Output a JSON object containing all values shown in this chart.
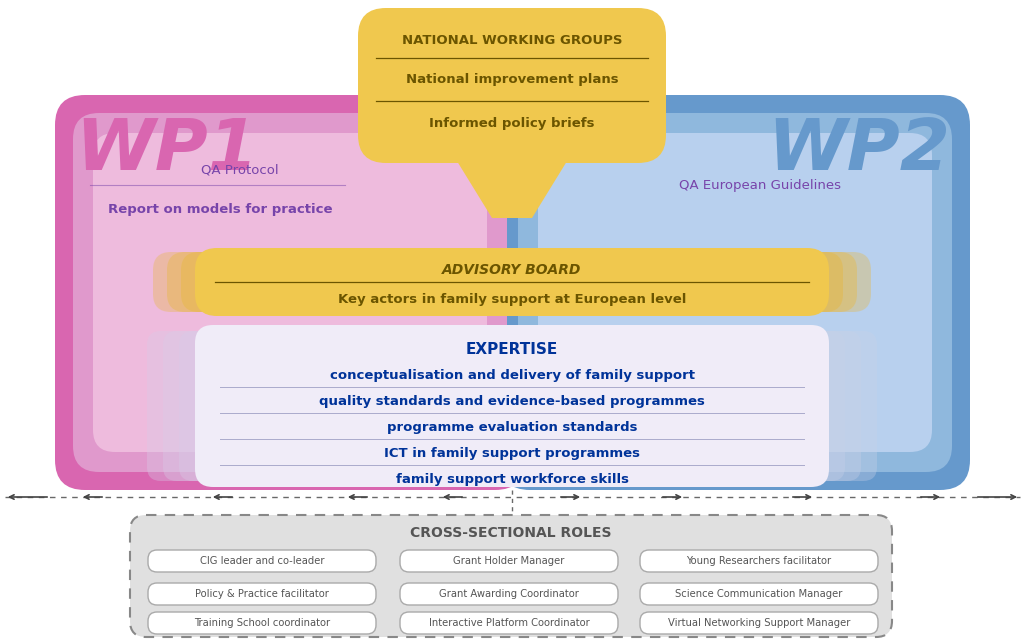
{
  "wp1_label": "WP1",
  "wp2_label": "WP2",
  "wp1_color": "#d966b0",
  "wp2_color": "#6699cc",
  "wp1_inner_color": "#e099cc",
  "wp2_inner_color": "#8fb8dd",
  "wp1_lightest": "#eebbdd",
  "wp2_lightest": "#b8d0ee",
  "bg_color": "#ffffff",
  "national_wg_title": "NATIONAL WORKING GROUPS",
  "national_wg_lines": [
    "National improvement plans",
    "Informed policy briefs"
  ],
  "national_wg_bg": "#f0c84e",
  "national_wg_text_color": "#6b5500",
  "wp1_deliverable1": "QA Protocol",
  "wp1_deliverable2": "Report on models for practice",
  "wp2_deliverable": "QA European Guidelines",
  "advisory_title": "ADVISORY BOARD",
  "advisory_subtitle": "Key actors in family support at European level",
  "advisory_bg": "#f0c84e",
  "advisory_text_color": "#6b5500",
  "expertise_title": "EXPERTISE",
  "expertise_lines": [
    "conceptualisation and delivery of family support",
    "quality standards and evidence-based programmes",
    "programme evaluation standards",
    "ICT in family support programmes",
    "family support workforce skills"
  ],
  "expertise_text_color": "#003399",
  "deliverable_text_color": "#7744aa",
  "cross_sectional_title": "CROSS-SECTIONAL ROLES",
  "cross_sectional_roles": [
    [
      "CIG leader and co-leader",
      "Grant Holder Manager",
      "Young Researchers facilitator"
    ],
    [
      "Policy & Practice facilitator",
      "Grant Awarding Coordinator",
      "Science Communication Manager"
    ],
    [
      "Training School coordinator",
      "Interactive Platform Coordinator",
      "Virtual Networking Support Manager"
    ]
  ],
  "cross_bg": "#e0e0e0",
  "cross_border_color": "#888888",
  "cross_text_color": "#555555",
  "arrow_color": "#444444"
}
